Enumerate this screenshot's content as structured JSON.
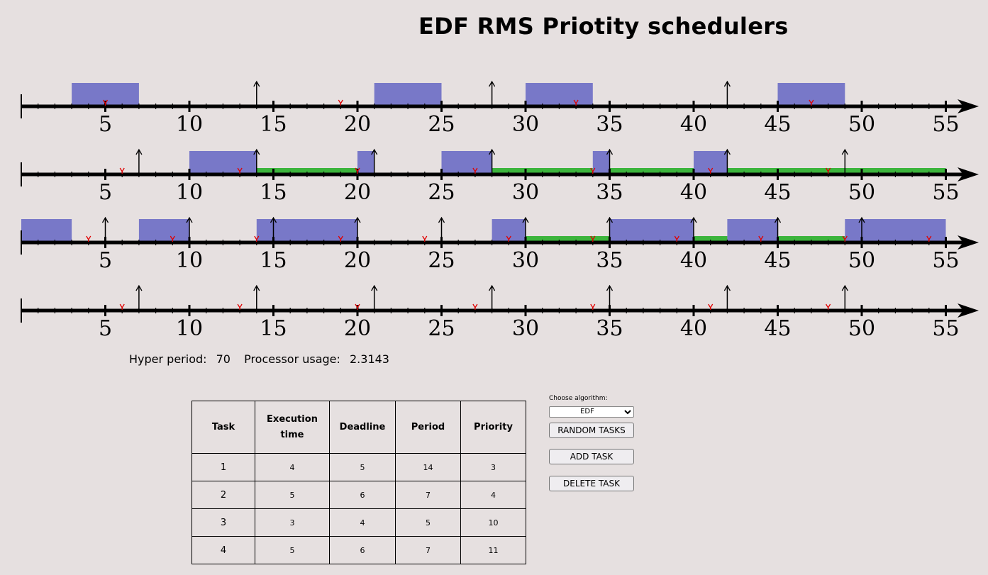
{
  "title": "EDF RMS Priotity schedulers",
  "timeline": {
    "tick_labels": [
      "5",
      "10",
      "15",
      "20",
      "25",
      "30",
      "35",
      "40",
      "45",
      "50",
      "55"
    ],
    "colors": {
      "exec": "#7878c8",
      "wait": "#3cb43c",
      "deadline": "#e00000",
      "axis": "#000000"
    },
    "rows": [
      {
        "exec": [
          [
            3,
            7
          ],
          [
            21,
            25
          ],
          [
            30,
            34
          ],
          [
            45,
            49
          ]
        ],
        "wait": [],
        "arrivals": [
          14,
          28,
          42
        ],
        "deadlines": [
          5,
          19,
          33,
          47
        ]
      },
      {
        "exec": [
          [
            10,
            14
          ],
          [
            20,
            21
          ],
          [
            25,
            28
          ],
          [
            34,
            35
          ],
          [
            40,
            42
          ]
        ],
        "wait": [
          [
            14,
            20
          ],
          [
            28,
            34
          ],
          [
            35,
            40
          ],
          [
            42,
            55
          ]
        ],
        "arrivals": [
          7,
          14,
          21,
          28,
          35,
          42,
          49
        ],
        "deadlines": [
          6,
          13,
          20,
          27,
          34,
          41,
          48
        ]
      },
      {
        "exec": [
          [
            0,
            3
          ],
          [
            7,
            10
          ],
          [
            14,
            20
          ],
          [
            28,
            30
          ],
          [
            35,
            40
          ],
          [
            42,
            45
          ],
          [
            49,
            55
          ]
        ],
        "wait": [
          [
            30,
            35
          ],
          [
            40,
            42
          ],
          [
            45,
            49
          ]
        ],
        "arrivals": [
          5,
          10,
          15,
          20,
          25,
          30,
          35,
          40,
          45,
          50
        ],
        "deadlines": [
          4,
          9,
          14,
          19,
          24,
          29,
          34,
          39,
          44,
          49,
          54
        ]
      },
      {
        "exec": [],
        "wait": [],
        "arrivals": [
          7,
          14,
          21,
          28,
          35,
          42,
          49
        ],
        "deadlines": [
          6,
          13,
          20,
          27,
          34,
          41,
          48
        ]
      }
    ]
  },
  "stats": {
    "hyper_period_label": "Hyper period:",
    "hyper_period_value": "70",
    "processor_usage_label": "Processor usage:",
    "processor_usage_value": "2.3143"
  },
  "table": {
    "headers": [
      "Task",
      "Execution time",
      "Deadline",
      "Period",
      "Priority"
    ],
    "rows": [
      [
        "1",
        "4",
        "5",
        "14",
        "3"
      ],
      [
        "2",
        "5",
        "6",
        "7",
        "4"
      ],
      [
        "3",
        "3",
        "4",
        "5",
        "10"
      ],
      [
        "4",
        "5",
        "6",
        "7",
        "11"
      ]
    ]
  },
  "controls": {
    "algorithm_label": "Choose algorithm:",
    "algorithm_selected": "EDF",
    "random_label": "RANDOM TASKS",
    "add_label": "ADD TASK",
    "delete_label": "DELETE TASK"
  }
}
